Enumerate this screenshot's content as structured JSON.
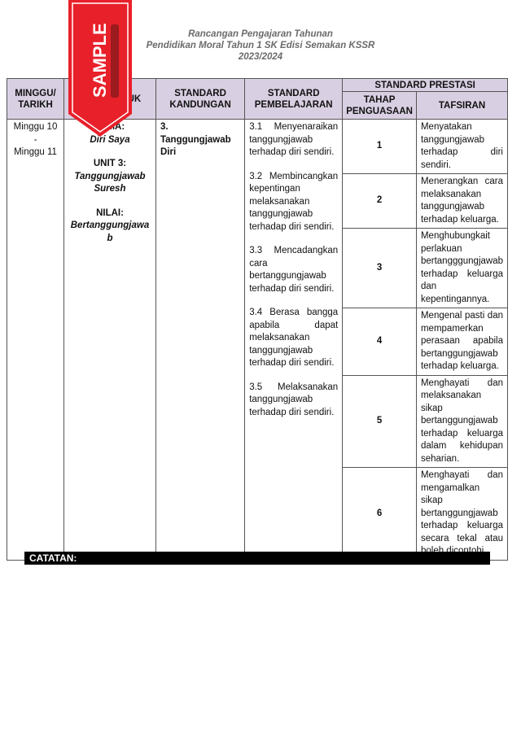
{
  "header": {
    "line1": "Rancangan Pengajaran Tahunan",
    "line2": "Pendidikan Moral Tahun 1 SK Edisi Semakan KSSR",
    "line3": "2023/2024"
  },
  "watermark": {
    "text": "SAMPLE",
    "color": "#e8202a"
  },
  "table": {
    "headers": {
      "minggu": "MINGGU/ TARIKH",
      "tema": "TEMA/ TAJUK",
      "kandungan": "STANDARD KANDUNGAN",
      "pembelajaran": "STANDARD PEMBELAJARAN",
      "prestasi": "STANDARD PRESTASI",
      "tahap": "TAHAP PENGUASAAN",
      "tafsiran": "TAFSIRAN"
    },
    "header_color": "#d9cfe2",
    "minggu": {
      "from": "Minggu 10",
      "sep": "-",
      "to": "Minggu 11"
    },
    "tema": {
      "tema_label": "TEMA:",
      "tema_value": "Diri Saya",
      "unit_label": "UNIT 3:",
      "unit_value": "Tanggungjawab Suresh",
      "nilai_label": "NILAI:",
      "nilai_value": "Bertanggungjawab"
    },
    "kandungan": {
      "number": "3.",
      "title": "Tanggungjawab Diri"
    },
    "pembelajaran": [
      "3.1 Menyenaraikan tanggungjawab terhadap diri sendiri.",
      "3.2 Membincangkan kepentingan melaksanakan tanggungjawab terhadap diri sendiri.",
      "3.3 Mencadangkan cara bertanggungjawab terhadap diri sendiri.",
      "3.4 Berasa bangga apabila dapat melaksanakan tanggungjawab terhadap diri sendiri.",
      "3.5 Melaksanakan tanggungjawab terhadap diri sendiri."
    ],
    "prestasi": [
      {
        "tahap": "1",
        "tafsiran": "Menyatakan tanggungjawab terhadap diri sendiri."
      },
      {
        "tahap": "2",
        "tafsiran": "Menerangkan cara melaksanakan tanggungjawab terhadap keluarga."
      },
      {
        "tahap": "3",
        "tafsiran": "Menghubungkait perlakuan bertangggungjawab terhadap keluarga dan kepentingannya."
      },
      {
        "tahap": "4",
        "tafsiran": "Mengenal pasti dan mempamerkan perasaan apabila bertanggungjawab terhadap keluarga."
      },
      {
        "tahap": "5",
        "tafsiran": "Menghayati dan melaksanakan sikap bertanggungjawab terhadap keluarga dalam kehidupan seharian."
      },
      {
        "tahap": "6",
        "tafsiran": "Menghayati dan mengamalkan sikap bertanggungjawab terhadap keluarga secara tekal atau boleh dicontohi."
      }
    ]
  },
  "catatan": {
    "label": "CATATAN:"
  }
}
